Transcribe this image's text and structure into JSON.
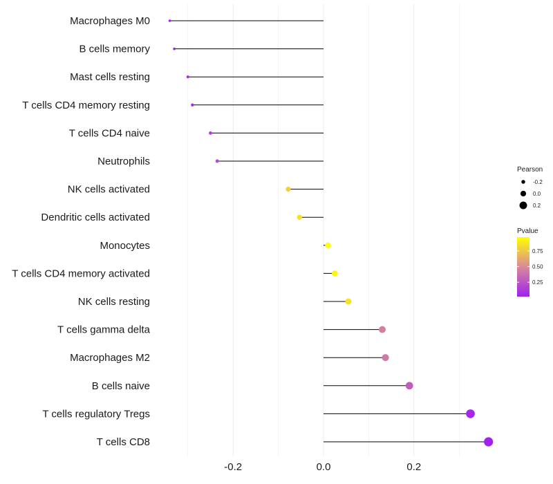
{
  "chart_data": {
    "type": "lollipop",
    "title": "",
    "xlabel": "",
    "ylabel": "",
    "xlim": [
      -0.38,
      0.38
    ],
    "x_ticks": [
      -0.2,
      0.0,
      0.2
    ],
    "x_tick_labels": [
      "-0.2",
      "0.0",
      "0.2"
    ],
    "baseline": 0,
    "grid": true,
    "categories": [
      "Macrophages M0",
      "B cells memory",
      "Mast cells resting",
      "T cells CD4 memory resting",
      "T cells CD4 naive",
      "Neutrophils",
      "NK cells activated",
      "Dendritic cells activated",
      "Monocytes",
      "T cells CD4 memory activated",
      "NK cells resting",
      "T cells gamma delta",
      "Macrophages M2",
      "B cells naive",
      "T cells regulatory  Tregs ",
      "T cells CD8"
    ],
    "pearson": [
      -0.34,
      -0.33,
      -0.3,
      -0.29,
      -0.25,
      -0.235,
      -0.078,
      -0.053,
      0.01,
      0.025,
      0.055,
      0.13,
      0.137,
      0.19,
      0.325,
      0.365
    ],
    "pvalue": [
      0.02,
      0.03,
      0.06,
      0.08,
      0.15,
      0.2,
      0.78,
      0.85,
      0.97,
      0.93,
      0.86,
      0.45,
      0.42,
      0.3,
      0.05,
      0.03
    ],
    "legend": {
      "size": {
        "title": "Pearson",
        "breaks": [
          -0.2,
          0.0,
          0.2
        ],
        "labels": [
          "-0.2",
          "0.0",
          "0.2"
        ]
      },
      "color": {
        "title": "Pvalue",
        "range": [
          0.02,
          0.97
        ],
        "breaks": [
          0.25,
          0.5,
          0.75
        ],
        "labels": [
          "0.25",
          "0.50",
          "0.75"
        ],
        "low_color": "#a020f0",
        "high_color": "#ffff00"
      }
    },
    "colors": {
      "stem": "#000000",
      "grid": "#ebebeb"
    }
  }
}
